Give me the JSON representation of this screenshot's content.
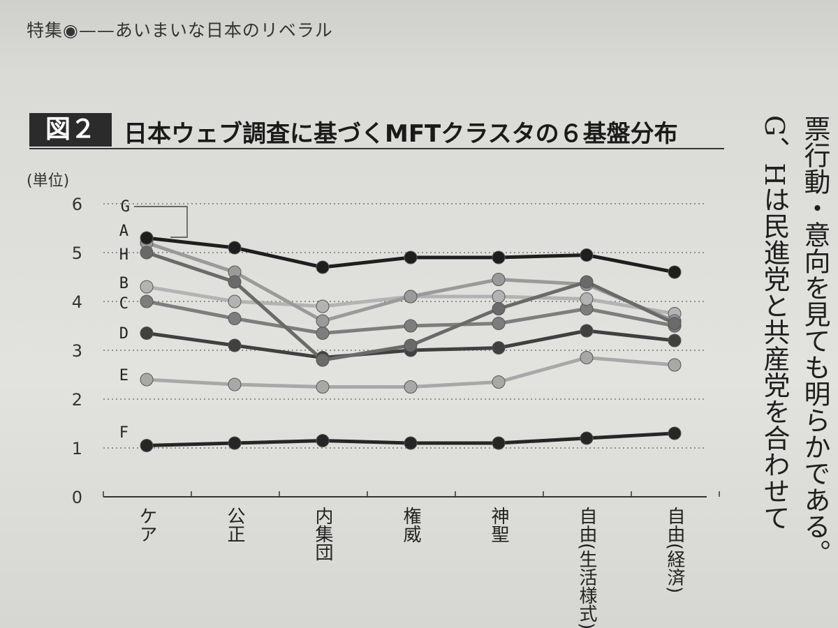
{
  "header": {
    "running_title": "特集◉——あいまいな日本のリベラル"
  },
  "figure": {
    "badge": "図２",
    "title": "日本ウェブ調査に基づくMFTクラスタの６基盤分布"
  },
  "side_text": {
    "col1": "票行動・意向を見ても明らかである。",
    "col2": "G、Hは民進党と共産党を合わせて"
  },
  "chart_data": {
    "type": "line",
    "unit_label": "(単位)",
    "categories": [
      "ケア",
      "公正",
      "内集団",
      "権威",
      "神聖",
      "自由(生活様式)",
      "自由(経済)"
    ],
    "ylim": [
      0,
      6
    ],
    "yticks": [
      "0",
      "1",
      "2",
      "3",
      "4",
      "5",
      "6"
    ],
    "grid": "dotted horizontal",
    "series": [
      {
        "name": "A",
        "values": [
          5.3,
          5.1,
          4.7,
          4.9,
          4.9,
          4.95,
          4.6
        ],
        "color": "#1e1e1e"
      },
      {
        "name": "H",
        "values": [
          5.0,
          4.4,
          2.8,
          3.1,
          3.85,
          4.4,
          3.55
        ],
        "color": "#6a6a6a"
      },
      {
        "name": "G",
        "values": [
          5.2,
          4.6,
          3.6,
          4.1,
          4.45,
          4.35,
          3.6
        ],
        "color": "#9a9a9a"
      },
      {
        "name": "B",
        "values": [
          4.3,
          4.0,
          3.9,
          4.1,
          4.1,
          4.05,
          3.75
        ],
        "color": "#b3b3b3"
      },
      {
        "name": "C",
        "values": [
          4.0,
          3.65,
          3.35,
          3.5,
          3.55,
          3.85,
          3.5
        ],
        "color": "#7d7d7d"
      },
      {
        "name": "D",
        "values": [
          3.35,
          3.1,
          2.85,
          3.0,
          3.05,
          3.4,
          3.2
        ],
        "color": "#404040"
      },
      {
        "name": "E",
        "values": [
          2.4,
          2.3,
          2.25,
          2.25,
          2.35,
          2.85,
          2.7
        ],
        "color": "#a8a8a8"
      },
      {
        "name": "F",
        "values": [
          1.05,
          1.1,
          1.15,
          1.1,
          1.1,
          1.2,
          1.3
        ],
        "color": "#262626"
      }
    ]
  }
}
